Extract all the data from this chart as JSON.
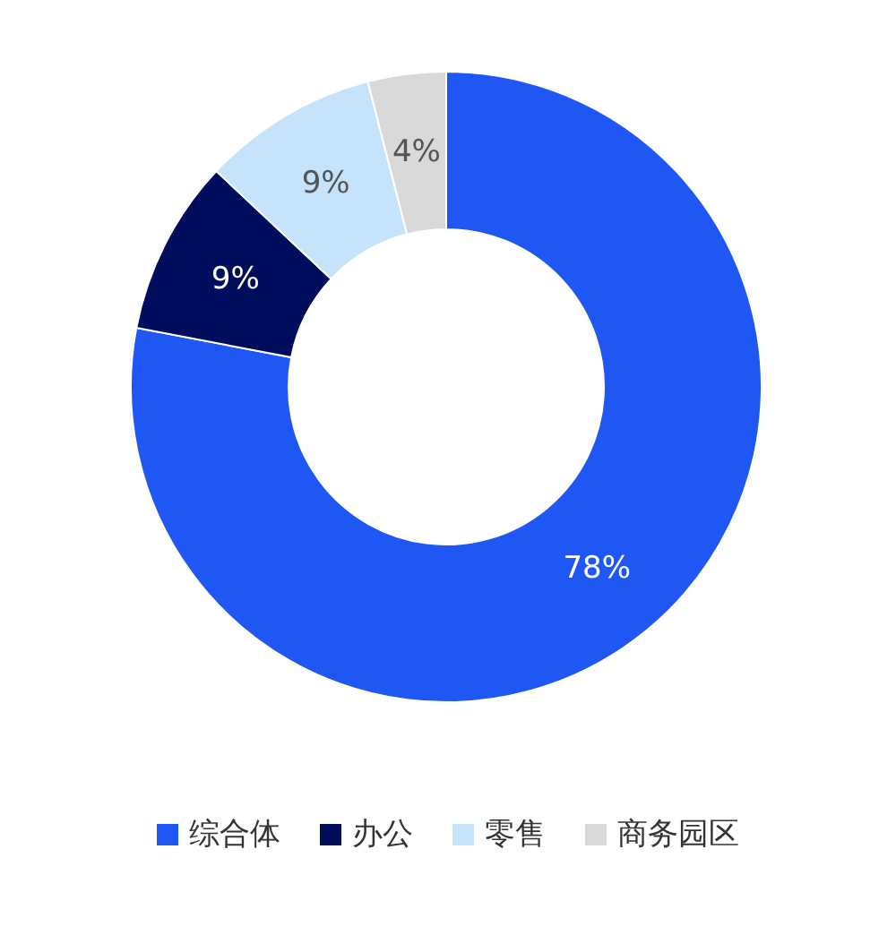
{
  "chart_data": {
    "type": "donut",
    "categories": [
      "综合体",
      "办公",
      "零售",
      "商务园区"
    ],
    "values": [
      78,
      9,
      9,
      4
    ],
    "colors": [
      "#1f57f5",
      "#000d5c",
      "#c5e3fb",
      "#d9d9d9"
    ],
    "value_labels": [
      "78%",
      "9%",
      "9%",
      "4%"
    ],
    "legend": "bottom"
  }
}
